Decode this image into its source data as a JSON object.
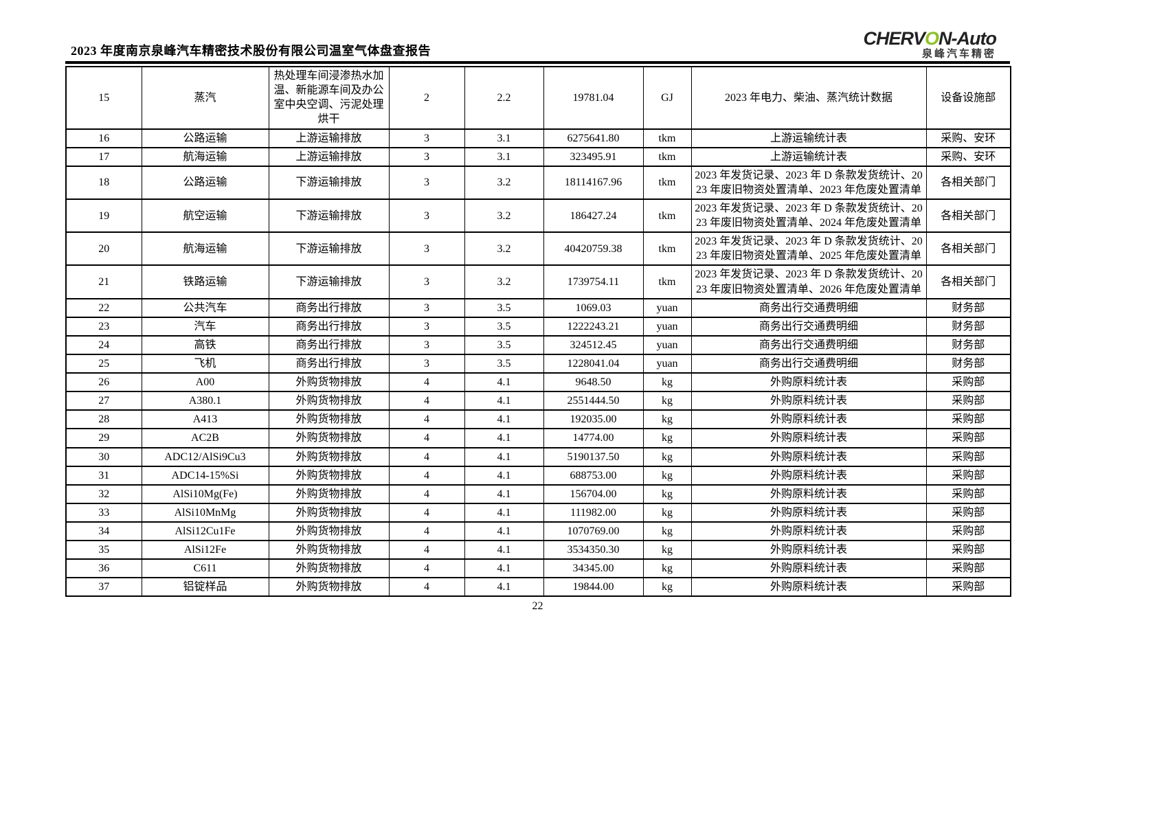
{
  "header": {
    "title": "2023 年度南京泉峰汽车精密技术股份有限公司温室气体盘查报告",
    "logo": {
      "brand_pre": "CHERV",
      "brand_o": "O",
      "brand_post": "N-Auto",
      "subtitle": "泉峰汽车精密",
      "accent_color": "#8dc21e"
    }
  },
  "table": {
    "columns": [
      "no",
      "name",
      "desc",
      "scope",
      "sub",
      "value",
      "unit",
      "source",
      "dept"
    ],
    "rows": [
      {
        "no": "15",
        "name": "蒸汽",
        "desc": "热处理车间浸渗热水加温、新能源车间及办公室中央空调、污泥处理烘干",
        "scope": "2",
        "sub": "2.2",
        "value": "19781.04",
        "unit": "GJ",
        "source": "2023 年电力、柴油、蒸汽统计数据",
        "dept": "设备设施部"
      },
      {
        "no": "16",
        "name": "公路运输",
        "desc": "上游运输排放",
        "scope": "3",
        "sub": "3.1",
        "value": "6275641.80",
        "unit": "tkm",
        "source": "上游运输统计表",
        "dept": "采购、安环"
      },
      {
        "no": "17",
        "name": "航海运输",
        "desc": "上游运输排放",
        "scope": "3",
        "sub": "3.1",
        "value": "323495.91",
        "unit": "tkm",
        "source": "上游运输统计表",
        "dept": "采购、安环"
      },
      {
        "no": "18",
        "name": "公路运输",
        "desc": "下游运输排放",
        "scope": "3",
        "sub": "3.2",
        "value": "18114167.96",
        "unit": "tkm",
        "source": "2023 年发货记录、2023 年 D 条款发货统计、2023 年废旧物资处置清单、2023 年危废处置清单",
        "dept": "各相关部门"
      },
      {
        "no": "19",
        "name": "航空运输",
        "desc": "下游运输排放",
        "scope": "3",
        "sub": "3.2",
        "value": "186427.24",
        "unit": "tkm",
        "source": "2023 年发货记录、2023 年 D 条款发货统计、2023 年废旧物资处置清单、2024 年危废处置清单",
        "dept": "各相关部门"
      },
      {
        "no": "20",
        "name": "航海运输",
        "desc": "下游运输排放",
        "scope": "3",
        "sub": "3.2",
        "value": "40420759.38",
        "unit": "tkm",
        "source": "2023 年发货记录、2023 年 D 条款发货统计、2023 年废旧物资处置清单、2025 年危废处置清单",
        "dept": "各相关部门"
      },
      {
        "no": "21",
        "name": "铁路运输",
        "desc": "下游运输排放",
        "scope": "3",
        "sub": "3.2",
        "value": "1739754.11",
        "unit": "tkm",
        "source": "2023 年发货记录、2023 年 D 条款发货统计、2023 年废旧物资处置清单、2026 年危废处置清单",
        "dept": "各相关部门"
      },
      {
        "no": "22",
        "name": "公共汽车",
        "desc": "商务出行排放",
        "scope": "3",
        "sub": "3.5",
        "value": "1069.03",
        "unit": "yuan",
        "source": "商务出行交通费明细",
        "dept": "财务部"
      },
      {
        "no": "23",
        "name": "汽车",
        "desc": "商务出行排放",
        "scope": "3",
        "sub": "3.5",
        "value": "1222243.21",
        "unit": "yuan",
        "source": "商务出行交通费明细",
        "dept": "财务部"
      },
      {
        "no": "24",
        "name": "高铁",
        "desc": "商务出行排放",
        "scope": "3",
        "sub": "3.5",
        "value": "324512.45",
        "unit": "yuan",
        "source": "商务出行交通费明细",
        "dept": "财务部"
      },
      {
        "no": "25",
        "name": "飞机",
        "desc": "商务出行排放",
        "scope": "3",
        "sub": "3.5",
        "value": "1228041.04",
        "unit": "yuan",
        "source": "商务出行交通费明细",
        "dept": "财务部"
      },
      {
        "no": "26",
        "name": "A00",
        "desc": "外购货物排放",
        "scope": "4",
        "sub": "4.1",
        "value": "9648.50",
        "unit": "kg",
        "source": "外购原料统计表",
        "dept": "采购部"
      },
      {
        "no": "27",
        "name": "A380.1",
        "desc": "外购货物排放",
        "scope": "4",
        "sub": "4.1",
        "value": "2551444.50",
        "unit": "kg",
        "source": "外购原料统计表",
        "dept": "采购部"
      },
      {
        "no": "28",
        "name": "A413",
        "desc": "外购货物排放",
        "scope": "4",
        "sub": "4.1",
        "value": "192035.00",
        "unit": "kg",
        "source": "外购原料统计表",
        "dept": "采购部"
      },
      {
        "no": "29",
        "name": "AC2B",
        "desc": "外购货物排放",
        "scope": "4",
        "sub": "4.1",
        "value": "14774.00",
        "unit": "kg",
        "source": "外购原料统计表",
        "dept": "采购部"
      },
      {
        "no": "30",
        "name": "ADC12/AlSi9Cu3",
        "desc": "外购货物排放",
        "scope": "4",
        "sub": "4.1",
        "value": "5190137.50",
        "unit": "kg",
        "source": "外购原料统计表",
        "dept": "采购部"
      },
      {
        "no": "31",
        "name": "ADC14-15%Si",
        "desc": "外购货物排放",
        "scope": "4",
        "sub": "4.1",
        "value": "688753.00",
        "unit": "kg",
        "source": "外购原料统计表",
        "dept": "采购部"
      },
      {
        "no": "32",
        "name": "AlSi10Mg(Fe)",
        "desc": "外购货物排放",
        "scope": "4",
        "sub": "4.1",
        "value": "156704.00",
        "unit": "kg",
        "source": "外购原料统计表",
        "dept": "采购部"
      },
      {
        "no": "33",
        "name": "AlSi10MnMg",
        "desc": "外购货物排放",
        "scope": "4",
        "sub": "4.1",
        "value": "111982.00",
        "unit": "kg",
        "source": "外购原料统计表",
        "dept": "采购部"
      },
      {
        "no": "34",
        "name": "AlSi12Cu1Fe",
        "desc": "外购货物排放",
        "scope": "4",
        "sub": "4.1",
        "value": "1070769.00",
        "unit": "kg",
        "source": "外购原料统计表",
        "dept": "采购部"
      },
      {
        "no": "35",
        "name": "AlSi12Fe",
        "desc": "外购货物排放",
        "scope": "4",
        "sub": "4.1",
        "value": "3534350.30",
        "unit": "kg",
        "source": "外购原料统计表",
        "dept": "采购部"
      },
      {
        "no": "36",
        "name": "C611",
        "desc": "外购货物排放",
        "scope": "4",
        "sub": "4.1",
        "value": "34345.00",
        "unit": "kg",
        "source": "外购原料统计表",
        "dept": "采购部"
      },
      {
        "no": "37",
        "name": "铝锭样品",
        "desc": "外购货物排放",
        "scope": "4",
        "sub": "4.1",
        "value": "19844.00",
        "unit": "kg",
        "source": "外购原料统计表",
        "dept": "采购部"
      }
    ]
  },
  "footer": {
    "page_number": "22"
  }
}
